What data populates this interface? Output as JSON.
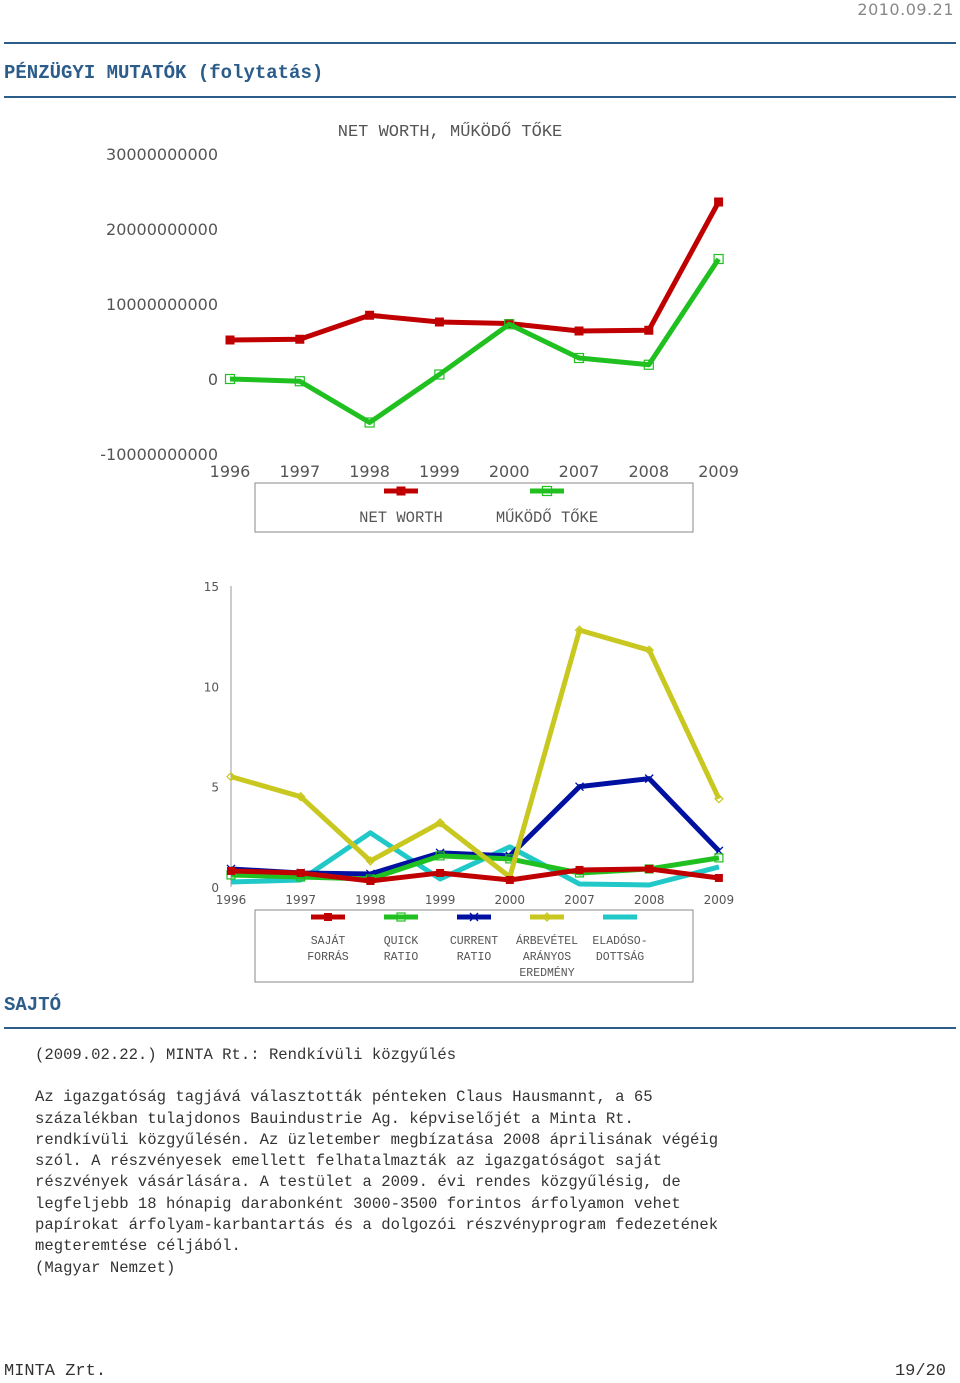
{
  "header": {
    "date": "2010.09.21"
  },
  "section1": {
    "title": "PÉNZÜGYI MUTATÓK (folytatás)"
  },
  "chart_data": [
    {
      "type": "line",
      "title": "NET WORTH, MŰKÖDŐ TŐKE",
      "categories": [
        "1996",
        "1997",
        "1998",
        "1999",
        "2000",
        "2007",
        "2008",
        "2009"
      ],
      "ylim": [
        -10000000000,
        30000000000
      ],
      "yticks": [
        -10000000000,
        0,
        10000000000,
        20000000000,
        30000000000
      ],
      "ytick_labels": [
        "-10000000000",
        "0",
        "10000000000",
        "20000000000",
        "30000000000"
      ],
      "series": [
        {
          "name": "NET WORTH",
          "color": "#c00000",
          "marker": "square-filled",
          "values": [
            5200000000,
            5300000000,
            8500000000,
            7600000000,
            7400000000,
            6400000000,
            6500000000,
            23600000000
          ]
        },
        {
          "name": "MŰKÖDŐ TŐKE",
          "color": "#20c020",
          "marker": "square-open",
          "values": [
            0,
            -300000000,
            -5800000000,
            600000000,
            7300000000,
            2800000000,
            1900000000,
            16000000000
          ]
        }
      ]
    },
    {
      "type": "line",
      "title": "",
      "categories": [
        "1996",
        "1997",
        "1998",
        "1999",
        "2000",
        "2007",
        "2008",
        "2009"
      ],
      "ylim": [
        0,
        15
      ],
      "yticks": [
        0,
        5,
        10,
        15
      ],
      "ytick_labels": [
        "0",
        "5",
        "10",
        "15"
      ],
      "series": [
        {
          "name": "SAJÁT FORRÁS",
          "label_lines": [
            "SAJÁT",
            "FORRÁS"
          ],
          "color": "#c00000",
          "marker": "square",
          "values": [
            0.8,
            0.7,
            0.3,
            0.7,
            0.35,
            0.85,
            0.9,
            0.45
          ]
        },
        {
          "name": "QUICK RATIO",
          "label_lines": [
            "QUICK",
            "RATIO"
          ],
          "color": "#20c020",
          "marker": "square-open",
          "values": [
            0.6,
            0.5,
            0.4,
            1.55,
            1.4,
            0.7,
            0.9,
            1.45
          ]
        },
        {
          "name": "CURRENT RATIO",
          "label_lines": [
            "CURRENT",
            "RATIO"
          ],
          "color": "#0010a0",
          "marker": "x",
          "values": [
            0.9,
            0.7,
            0.65,
            1.7,
            1.55,
            5.0,
            5.4,
            1.8
          ]
        },
        {
          "name": "ÁRBEVÉTEL ARÁNYOS EREDMÉNY",
          "label_lines": [
            "ÁRBEVÉTEL",
            "ARÁNYOS",
            "EREDMÉNY"
          ],
          "color": "#c8c820",
          "marker": "diamond-open",
          "values": [
            5.5,
            4.5,
            1.3,
            3.2,
            0.5,
            12.8,
            11.8,
            4.4
          ]
        },
        {
          "name": "ELADÓSODOTTSÁG",
          "label_lines": [
            "ELADÓSO-",
            "DOTTSÁG"
          ],
          "color": "#20c8c8",
          "marker": "none",
          "values": [
            0.25,
            0.35,
            2.7,
            0.4,
            2.0,
            0.15,
            0.1,
            1.0
          ]
        }
      ]
    }
  ],
  "section2": {
    "title": "SAJTÓ",
    "headline": "(2009.02.22.) MINTA Rt.: Rendkívüli közgyűlés",
    "paragraph_lines": [
      "Az igazgatóság tagjává választották pénteken Claus Hausmannt, a 65",
      "százalékban tulajdonos Bauindustrie Ag. képviselőjét a Minta Rt.",
      "rendkívüli közgyűlésén. Az üzletember megbízatása 2008 áprilisának végéig",
      "szól. A részvényesek emellett felhatalmazták az igazgatóságot saját",
      "részvények vásárlására. A testület a 2009. évi rendes közgyűlésig, de",
      "legfeljebb 18 hónapig darabonként 3000-3500 forintos árfolyamon vehet",
      "papírokat árfolyam-karbantartás és a dolgozói részvényprogram fedezetének",
      "megteremtése céljából."
    ],
    "source": "(Magyar Nemzet)"
  },
  "footer": {
    "company": "MINTA Zrt.",
    "page": "19/20"
  }
}
